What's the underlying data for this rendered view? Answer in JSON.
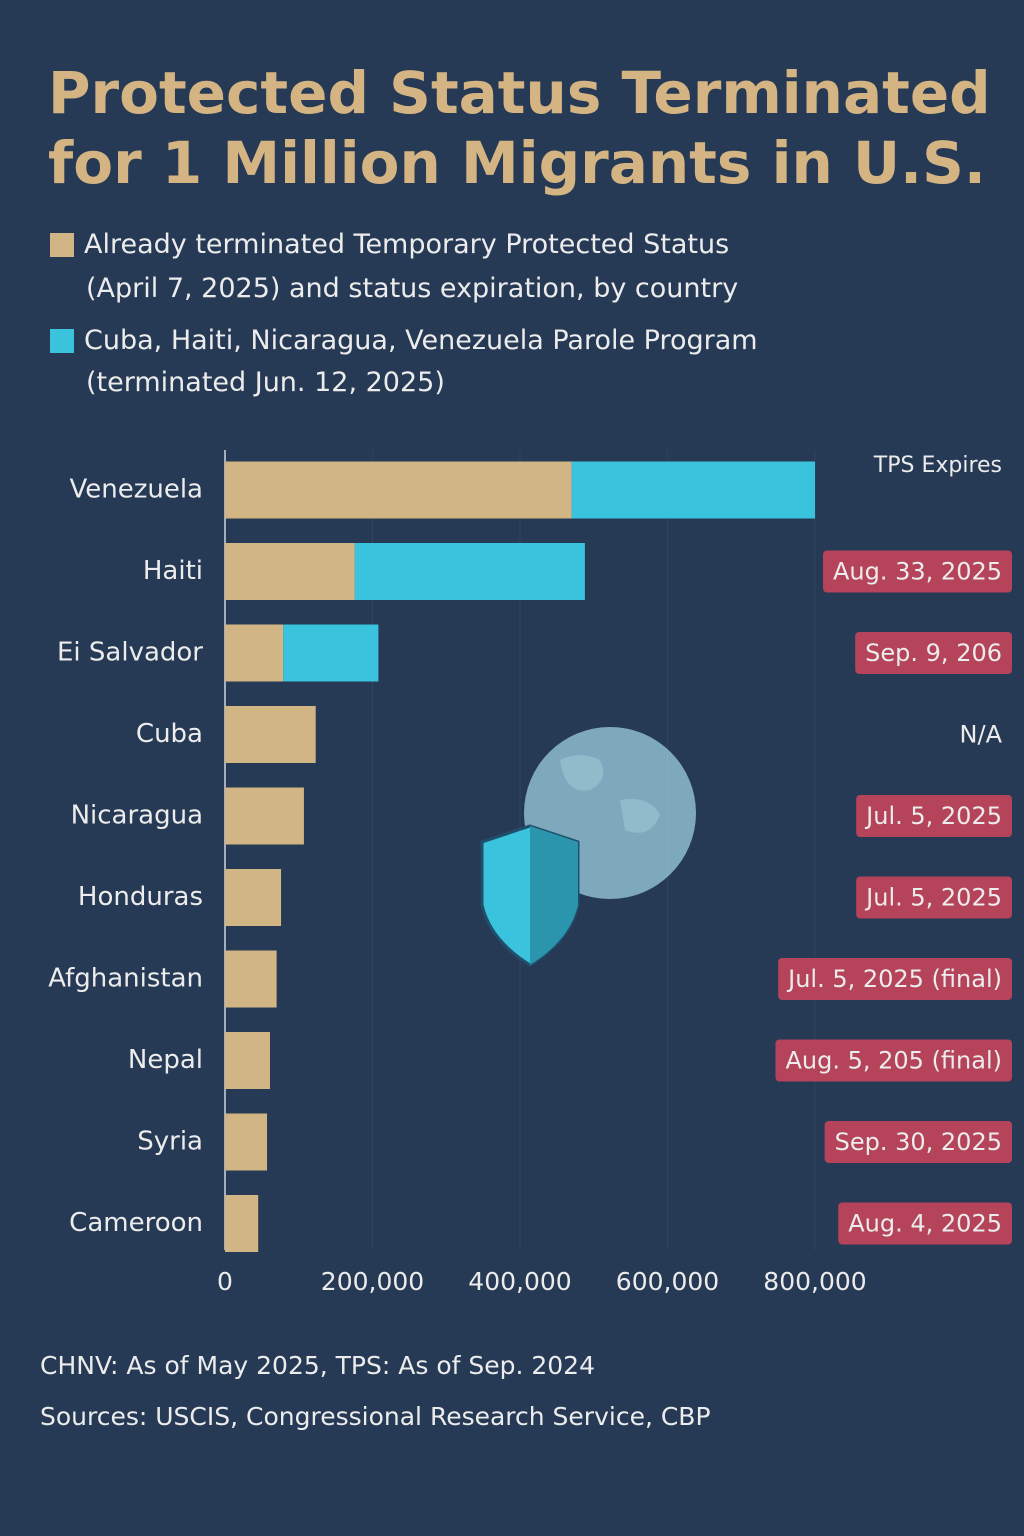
{
  "chart_data": {
    "type": "bar",
    "orientation": "horizontal",
    "stacked": true,
    "title": "Protected Status Terminated for 1 Million Migrants in U.S.",
    "categories": [
      "Venezuela",
      "Haiti",
      "Ei Salvador",
      "Cuba",
      "Nicaragua",
      "Honduras",
      "Afghanistan",
      "Nepal",
      "Syria",
      "Cameroon"
    ],
    "series": [
      {
        "name": "Already terminated Temporary Protected Status (April 7, 2025) and status expiration, by country",
        "color": "#d2b584",
        "values": [
          470000,
          176000,
          79000,
          123000,
          107000,
          76000,
          70000,
          61000,
          57000,
          45000
        ]
      },
      {
        "name": "Cuba, Haiti, Nicaragua, Venezuela Parole Program (terminated Jun. 12, 2025)",
        "color": "#3ac3dc",
        "values": [
          330000,
          312000,
          129000,
          null,
          null,
          null,
          null,
          null,
          null,
          null
        ]
      }
    ],
    "xlim": [
      0,
      800000
    ],
    "xticks": [
      0,
      {
        "value": 200000,
        "label": "200,000"
      },
      {
        "value": 400000,
        "label": "400,000"
      },
      {
        "value": 600000,
        "label": "600,000"
      },
      {
        "value": 800000,
        "label": "800,000"
      }
    ],
    "grid": true,
    "expiry_header": "TPS Expires",
    "expiry": [
      null,
      "Aug. 33, 2025",
      "Sep. 9, 206",
      "N/A",
      "Jul. 5, 2025",
      "Jul. 5, 2025",
      "Jul. 5, 2025 (final)",
      "Aug. 5, 205 (final)",
      "Sep. 30, 2025",
      "Aug. 4, 2025"
    ],
    "expiry_badge_colors": [
      null,
      "#b5435a",
      "#b5435a",
      null,
      "#b5435a",
      "#b5435a",
      "#b5435a",
      "#b5435a",
      "#b5435a",
      "#b5435a"
    ],
    "notes": [
      "CHNV: As of May  2025, TPS: As of Sep. 2024",
      "Sources: USCIS, Congressional Research Service, CBP"
    ]
  }
}
